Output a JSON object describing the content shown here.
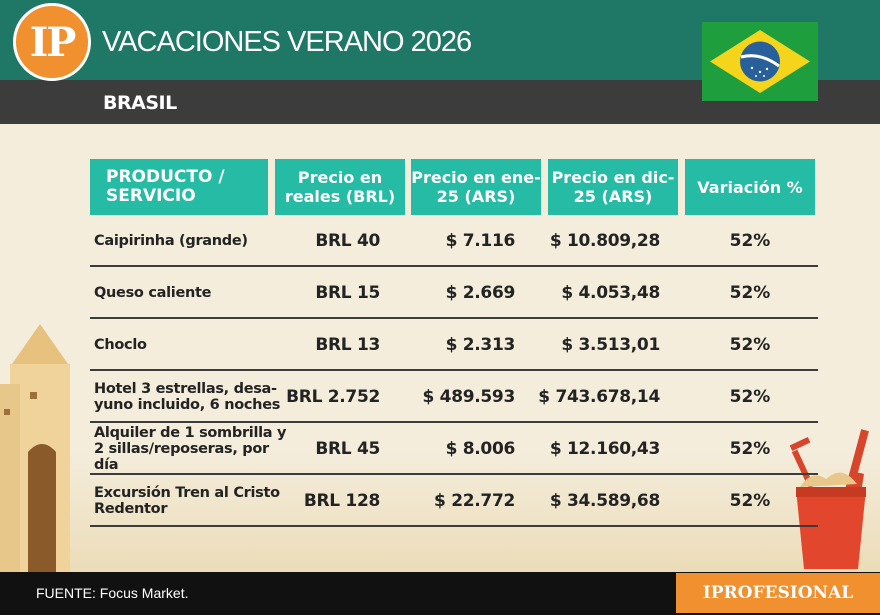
{
  "header": {
    "logo_text": "IP",
    "title": "VACACIONES VERANO 2026",
    "country": "BRASIL",
    "colors": {
      "primary": "#1f7766",
      "accent": "#f0902e",
      "table_header": "#26bba5",
      "dark": "#3b3c3b"
    }
  },
  "flag": {
    "icon": "brazil-flag-icon"
  },
  "table": {
    "columns": [
      "PRODUCTO / SERVICIO",
      "Precio en reales (BRL)",
      "Precio en ene-25 (ARS)",
      "Precio en dic-25 (ARS)",
      "Variación %"
    ],
    "rows": [
      {
        "product": "Caipirinha (grande)",
        "brl": "BRL 40",
        "ene25": "$ 7.116",
        "dic25": "$ 10.809,28",
        "variation": "52%"
      },
      {
        "product": "Queso caliente",
        "brl": "BRL 15",
        "ene25": "$ 2.669",
        "dic25": "$ 4.053,48",
        "variation": "52%"
      },
      {
        "product": "Choclo",
        "brl": "BRL 13",
        "ene25": "$ 2.313",
        "dic25": "$ 3.513,01",
        "variation": "52%"
      },
      {
        "product": "Hotel 3 estrellas, desa-yuno incluido, 6 noches",
        "brl": "BRL 2.752",
        "ene25": "$ 489.593",
        "dic25": "$ 743.678,14",
        "variation": "52%"
      },
      {
        "product": "Alquiler de 1 sombrilla y 2 sillas/reposeras, por día",
        "brl": "BRL 45",
        "ene25": "$ 8.006",
        "dic25": "$ 12.160,43",
        "variation": "52%"
      },
      {
        "product": "Excursión Tren al Cristo Redentor",
        "brl": "BRL 128",
        "ene25": "$ 22.772",
        "dic25": "$ 34.589,68",
        "variation": "52%"
      }
    ]
  },
  "footer": {
    "source": "FUENTE: Focus Market.",
    "brand": "IPROFESIONAL"
  }
}
